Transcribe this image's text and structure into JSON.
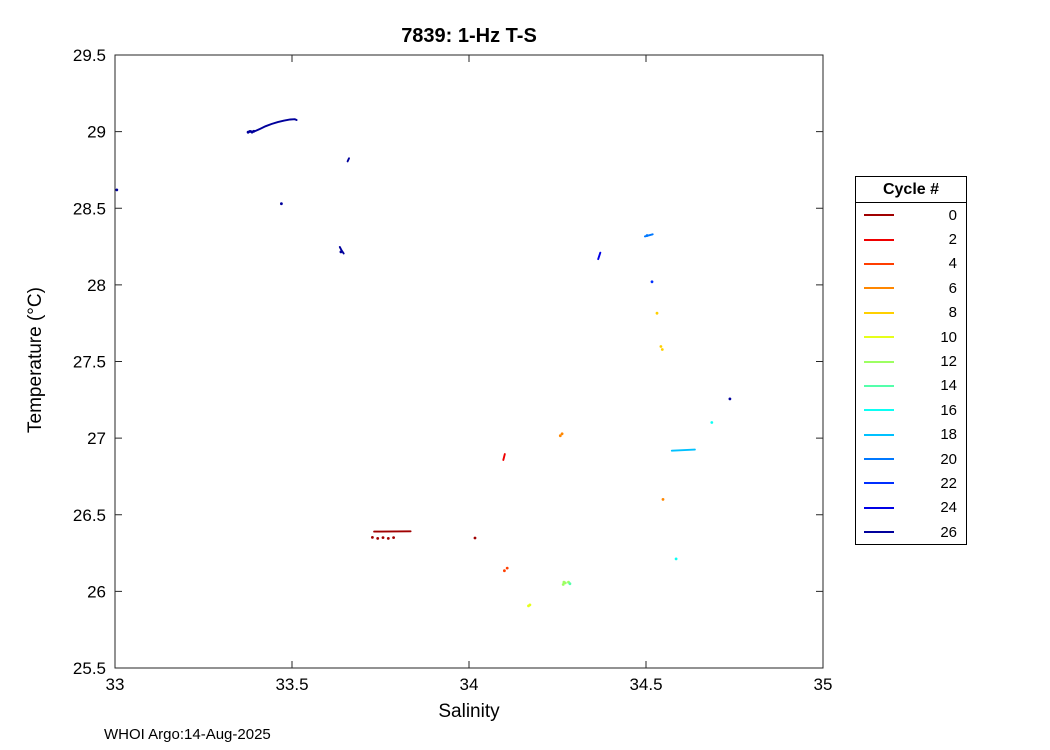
{
  "title": "7839: 1-Hz T-S",
  "xlabel": "Salinity",
  "ylabel": "Temperature (°C)",
  "footer": "WHOI Argo:14-Aug-2025",
  "legend": {
    "title": "Cycle #",
    "entries": [
      {
        "label": "0",
        "color": "#A00000"
      },
      {
        "label": "2",
        "color": "#EF0000"
      },
      {
        "label": "4",
        "color": "#FF3E00"
      },
      {
        "label": "6",
        "color": "#FF8700"
      },
      {
        "label": "8",
        "color": "#FFD000"
      },
      {
        "label": "10",
        "color": "#E6FF1A"
      },
      {
        "label": "12",
        "color": "#9DFF62"
      },
      {
        "label": "14",
        "color": "#54FFAB"
      },
      {
        "label": "16",
        "color": "#0BFFF4"
      },
      {
        "label": "18",
        "color": "#00C1FF"
      },
      {
        "label": "20",
        "color": "#0078FF"
      },
      {
        "label": "22",
        "color": "#002FFF"
      },
      {
        "label": "24",
        "color": "#0000E5"
      },
      {
        "label": "26",
        "color": "#00009C"
      }
    ]
  },
  "chart_data": {
    "type": "scatter",
    "title": "7839: 1-Hz T-S",
    "xlabel": "Salinity",
    "ylabel": "Temperature (°C)",
    "xlim": [
      33,
      35
    ],
    "ylim": [
      25.5,
      29.5
    ],
    "xticks": [
      33,
      33.5,
      34,
      34.5,
      35
    ],
    "yticks": [
      25.5,
      26,
      26.5,
      27,
      27.5,
      28,
      28.5,
      29,
      29.5
    ],
    "xtick_labels": [
      "33",
      "33.5",
      "34",
      "34.5",
      "35"
    ],
    "ytick_labels": [
      "25.5",
      "26",
      "26.5",
      "27",
      "27.5",
      "28",
      "28.5",
      "29",
      "29.5"
    ],
    "grid": false,
    "legend_position": "right-outside",
    "series": [
      {
        "name": "0",
        "color": "#A00000",
        "lines": [
          [
            [
              33.732,
              26.39
            ],
            [
              33.835,
              26.392
            ]
          ]
        ],
        "dots": [
          [
            33.727,
            26.352
          ],
          [
            33.742,
            26.346
          ],
          [
            33.757,
            26.351
          ],
          [
            33.772,
            26.346
          ],
          [
            33.787,
            26.351
          ],
          [
            34.017,
            26.348
          ]
        ]
      },
      {
        "name": "2",
        "color": "#EF0000",
        "lines": [
          [
            [
              34.097,
              26.857
            ],
            [
              34.101,
              26.896
            ]
          ]
        ],
        "dots": []
      },
      {
        "name": "4",
        "color": "#FF3E00",
        "lines": [],
        "dots": [
          [
            34.1,
            26.135
          ],
          [
            34.108,
            26.152
          ]
        ]
      },
      {
        "name": "6",
        "color": "#FF8700",
        "lines": [],
        "dots": [
          [
            34.258,
            27.016
          ],
          [
            34.263,
            27.028
          ],
          [
            34.548,
            26.6
          ]
        ]
      },
      {
        "name": "8",
        "color": "#FFD000",
        "lines": [],
        "dots": [
          [
            34.542,
            27.598
          ],
          [
            34.546,
            27.578
          ],
          [
            34.531,
            27.815
          ]
        ]
      },
      {
        "name": "10",
        "color": "#E6FF1A",
        "lines": [],
        "dots": [
          [
            34.168,
            25.905
          ],
          [
            34.172,
            25.912
          ]
        ]
      },
      {
        "name": "12",
        "color": "#9DFF62",
        "lines": [],
        "dots": [
          [
            34.266,
            26.045
          ],
          [
            34.268,
            26.06
          ],
          [
            34.272,
            26.055
          ],
          [
            34.281,
            26.06
          ]
        ]
      },
      {
        "name": "14",
        "color": "#54FFAB",
        "lines": [],
        "dots": [
          [
            34.285,
            26.05
          ]
        ]
      },
      {
        "name": "16",
        "color": "#0BFFF4",
        "lines": [],
        "dots": [
          [
            34.585,
            26.212
          ],
          [
            34.686,
            27.102
          ]
        ]
      },
      {
        "name": "18",
        "color": "#00C1FF",
        "lines": [
          [
            [
              34.573,
              26.918
            ],
            [
              34.638,
              26.925
            ]
          ]
        ],
        "dots": []
      },
      {
        "name": "20",
        "color": "#0078FF",
        "lines": [
          [
            [
              34.497,
              28.316
            ],
            [
              34.519,
              28.33
            ]
          ]
        ],
        "dots": [
          [
            34.503,
            28.322
          ]
        ]
      },
      {
        "name": "22",
        "color": "#002FFF",
        "lines": [],
        "dots": [
          [
            34.517,
            28.02
          ]
        ]
      },
      {
        "name": "24",
        "color": "#0000E5",
        "lines": [
          [
            [
              34.365,
              28.168
            ],
            [
              34.371,
              28.21
            ]
          ]
        ],
        "dots": []
      },
      {
        "name": "26",
        "color": "#00009C",
        "lines": [
          [
            [
              33.376,
              28.998
            ],
            [
              33.382,
              29.004
            ],
            [
              33.39,
              28.999
            ],
            [
              33.398,
              29.006
            ],
            [
              33.41,
              29.018
            ],
            [
              33.425,
              29.035
            ],
            [
              33.442,
              29.05
            ],
            [
              33.46,
              29.062
            ],
            [
              33.478,
              29.072
            ],
            [
              33.495,
              29.079
            ],
            [
              33.508,
              29.081
            ],
            [
              33.513,
              29.076
            ]
          ],
          [
            [
              33.635,
              28.247
            ],
            [
              33.64,
              28.225
            ],
            [
              33.646,
              28.205
            ]
          ],
          [
            [
              33.657,
              28.806
            ],
            [
              33.661,
              28.826
            ]
          ]
        ],
        "dots": [
          [
            33.005,
            28.62
          ],
          [
            33.376,
            28.996
          ],
          [
            33.381,
            29.001
          ],
          [
            33.387,
            28.997
          ],
          [
            33.392,
            29.002
          ],
          [
            33.47,
            28.53
          ],
          [
            33.638,
            28.215
          ],
          [
            34.737,
            27.256
          ]
        ]
      }
    ]
  }
}
